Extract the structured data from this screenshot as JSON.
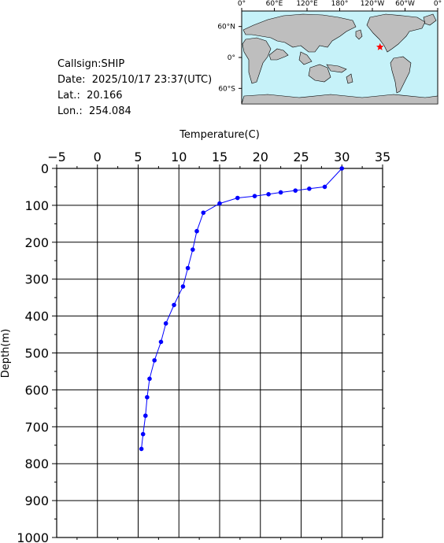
{
  "info": {
    "callsign": "Callsign:SHIP",
    "date": "Date:  2025/10/17 23:37(UTC)",
    "lat": "Lat.:  20.166",
    "lon": "Lon.:  254.084"
  },
  "map": {
    "lon_labels": [
      "0°",
      "60°E",
      "120°E",
      "180°",
      "120°W",
      "60°W",
      "0°"
    ],
    "lat_labels": [
      "60°N",
      "0°",
      "60°S"
    ],
    "marker": {
      "lat": 20.166,
      "lon": 254.084
    },
    "colors": {
      "ocean": "#c6f2f9",
      "land": "#bebebe",
      "marker": "#ff0000"
    }
  },
  "chart_data": {
    "type": "line",
    "xlabel": "Temperature(C)",
    "ylabel": "Depth(m)",
    "xlim": [
      -5,
      35
    ],
    "ylim": [
      0,
      1000
    ],
    "y_inverted": true,
    "grid": true,
    "x_ticks": [
      "-5",
      "0",
      "5",
      "10",
      "15",
      "20",
      "25",
      "30",
      "35"
    ],
    "y_ticks": [
      "0",
      "100",
      "200",
      "300",
      "400",
      "500",
      "600",
      "700",
      "800",
      "900",
      "1000"
    ],
    "color": "#0000ff",
    "series": [
      {
        "x": [
          30.0,
          27.9,
          26.0,
          24.3,
          22.5,
          21.0,
          19.3,
          17.2,
          15.0,
          13.0,
          12.2,
          11.7,
          11.1,
          10.5,
          9.4,
          8.4,
          7.8,
          7.0,
          6.4,
          6.1,
          5.9,
          5.6,
          5.4
        ],
        "y": [
          0,
          50,
          55,
          60,
          65,
          70,
          75,
          80,
          95,
          120,
          170,
          220,
          270,
          320,
          370,
          420,
          470,
          520,
          570,
          620,
          670,
          720,
          760
        ]
      }
    ]
  }
}
